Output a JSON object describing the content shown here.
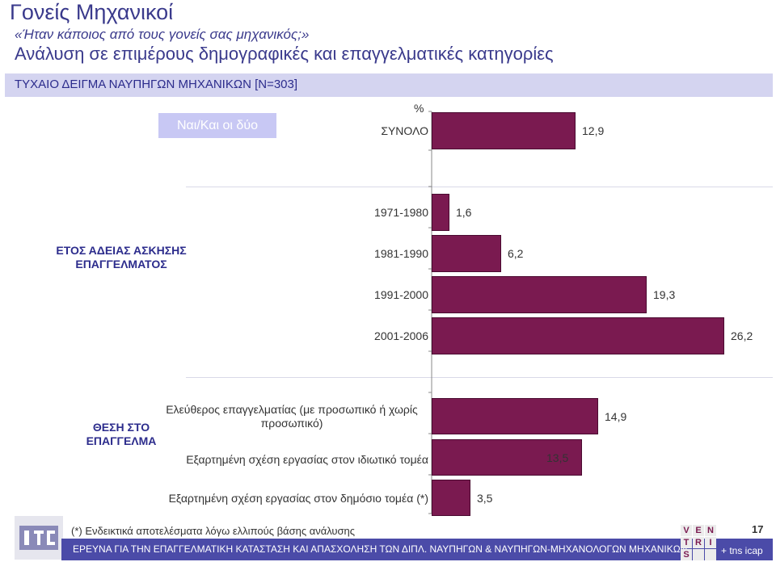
{
  "title": "Γονείς Μηχανικοί",
  "question": "«Ήταν κάποιος από τους γονείς σας μηχανικός;»",
  "subtitle": "Ανάλυση σε επιμέρους δημογραφικές και επαγγελματικές κατηγορίες",
  "sample": "ΤΥΧΑΙΟ ΔΕΙΓΜΑ ΝΑΥΠΗΓΩΝ ΜΗΧΑΝΙΚΩΝ [N=303]",
  "legend_label": "Ναι/Και οι δύο",
  "colors": {
    "bar": "#7a1a50",
    "band": "#d4d4f0",
    "footer": "#4b4ba8",
    "text_blue": "#3a3a8c"
  },
  "chart_data": {
    "type": "bar",
    "orientation": "horizontal",
    "unit": "%",
    "xlim": [
      0,
      30
    ],
    "series": [
      {
        "name": "Ναι/Και οι δύο"
      }
    ],
    "groups": [
      {
        "label": "",
        "categories": [
          "ΣΥΝΟΛΟ"
        ],
        "values": [
          12.9
        ],
        "value_labels": [
          "12,9"
        ]
      },
      {
        "label": "ΕΤΟΣ ΑΔΕΙΑΣ ΑΣΚΗΣΗΣ ΕΠΑΓΓΕΛΜΑΤΟΣ",
        "categories": [
          "1971-1980",
          "1981-1990",
          "1991-2000",
          "2001-2006"
        ],
        "values": [
          1.6,
          6.2,
          19.3,
          26.2
        ],
        "value_labels": [
          "1,6",
          "6,2",
          "19,3",
          "26,2"
        ]
      },
      {
        "label": "ΘΕΣΗ ΣΤΟ ΕΠΑΓΓΕΛΜΑ",
        "categories": [
          "Ελεύθερος επαγγελματίας (με προσωπικό ή χωρίς προσωπικό)",
          "Εξαρτημένη σχέση εργασίας στον ιδιωτικό τομέα",
          "Εξαρτημένη σχέση εργασίας στον δημόσιο τομέα (*)"
        ],
        "values": [
          14.9,
          13.5,
          3.5
        ],
        "value_labels": [
          "14,9",
          "13,5",
          "3,5"
        ]
      }
    ]
  },
  "footer": {
    "note": "(*) Ενδεικτικά αποτελέσματα λόγω ελλιπούς βάσης ανάλυσης",
    "survey": "ΕΡΕΥΝΑ ΓΙΑ ΤΗΝ ΕΠΑΓΓΕΛΜΑΤΙΚΗ ΚΑΤΑΣΤΑΣΗ ΚΑΙ ΑΠΑΣΧΟΛΗΣΗ ΤΩΝ ΔΙΠΛ. ΝΑΥΠΗΓΩΝ & ΝΑΥΠΗΓΩΝ-ΜΗΧΑΝΟΛΟΓΩΝ ΜΗΧΑΝΙΚΩΝ",
    "page": "17",
    "brand": "+ tns icap",
    "vtri_letters": [
      "V",
      "E",
      "N",
      "T",
      "R",
      "I",
      "S",
      "",
      ""
    ]
  }
}
